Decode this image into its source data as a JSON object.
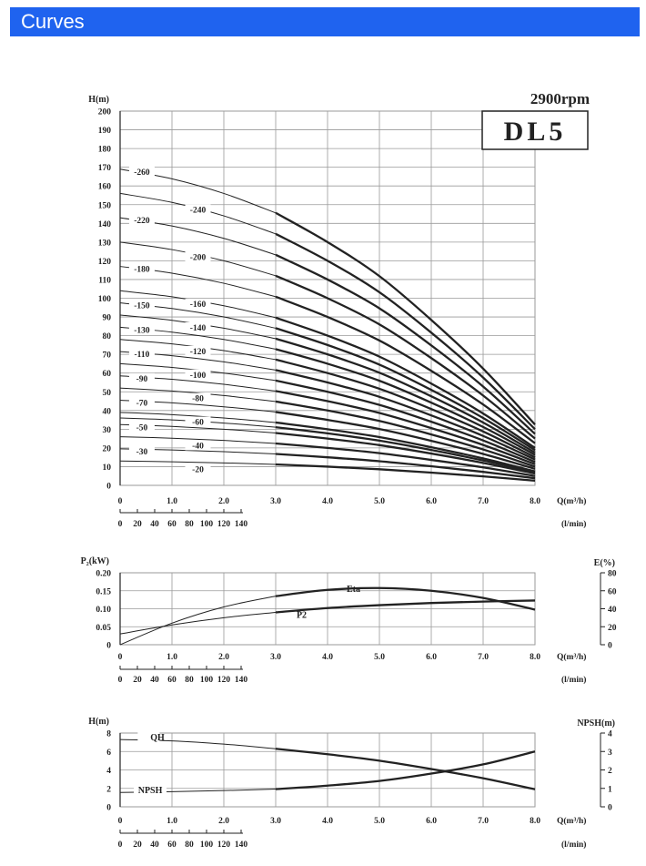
{
  "header": {
    "title": "Curves"
  },
  "colors": {
    "header": "#1f63ef",
    "ink": "#222222",
    "grid": "#9a9a9a"
  },
  "chart_data": [
    {
      "type": "line",
      "title": "DL5",
      "speed": "2900rpm",
      "ylabel": "H(m)",
      "xlabel": "Q(m³/h)",
      "xlabel2": "(l/min)",
      "ylim": [
        0,
        200
      ],
      "xlim": [
        0,
        8
      ],
      "yticks": [
        "0",
        "10",
        "20",
        "30",
        "40",
        "50",
        "60",
        "70",
        "80",
        "90",
        "100",
        "110",
        "120",
        "130",
        "140",
        "150",
        "160",
        "170",
        "180",
        "190",
        "200"
      ],
      "xticks": [
        "0",
        "1.0",
        "2.0",
        "3.0",
        "4.0",
        "5.0",
        "6.0",
        "7.0",
        "8.0"
      ],
      "xticks2": [
        "0",
        "20",
        "40",
        "60",
        "80",
        "100",
        "120",
        "140"
      ],
      "grid": true,
      "series": [
        {
          "name": "-20",
          "labeled": true,
          "values": [
            13,
            12.6,
            12.0,
            11.2,
            10.0,
            8.6,
            6.8,
            4.8,
            2.5
          ]
        },
        {
          "name": "-30",
          "labeled": true,
          "values": [
            19.5,
            18.9,
            18.0,
            16.8,
            15.0,
            12.9,
            10.2,
            7.2,
            3.8
          ]
        },
        {
          "name": "-40",
          "labeled": true,
          "values": [
            26,
            25.2,
            24.0,
            22.4,
            20.0,
            17.2,
            13.6,
            9.6,
            5.0
          ]
        },
        {
          "name": "-50",
          "labeled": true,
          "values": [
            32.5,
            31.5,
            30.0,
            28.0,
            25.0,
            21.5,
            17.0,
            12.0,
            6.3
          ]
        },
        {
          "name": "",
          "labeled": false,
          "values": [
            36,
            35.0,
            33.3,
            31.1,
            27.8,
            23.9,
            18.9,
            13.3,
            7.0
          ]
        },
        {
          "name": "-60",
          "labeled": true,
          "values": [
            39,
            37.8,
            36.0,
            33.6,
            30.0,
            25.8,
            20.4,
            14.4,
            7.5
          ]
        },
        {
          "name": "-70",
          "labeled": true,
          "values": [
            45.5,
            44.1,
            42.0,
            39.2,
            35.0,
            30.1,
            23.8,
            16.8,
            8.8
          ]
        },
        {
          "name": "-80",
          "labeled": true,
          "values": [
            52,
            50.4,
            48.0,
            44.8,
            40.0,
            34.4,
            27.2,
            19.2,
            10.0
          ]
        },
        {
          "name": "-90",
          "labeled": true,
          "values": [
            58.5,
            56.7,
            54.0,
            50.4,
            45.0,
            38.7,
            30.6,
            21.6,
            11.3
          ]
        },
        {
          "name": "-100",
          "labeled": true,
          "values": [
            65,
            63.0,
            60.0,
            56.0,
            50.0,
            43.0,
            34.0,
            24.0,
            12.5
          ]
        },
        {
          "name": "-110",
          "labeled": true,
          "values": [
            71.5,
            69.3,
            66.0,
            61.6,
            55.0,
            47.3,
            37.4,
            26.4,
            13.8
          ]
        },
        {
          "name": "-120",
          "labeled": true,
          "values": [
            78,
            75.6,
            72.0,
            67.2,
            60.0,
            51.6,
            40.8,
            28.8,
            15.0
          ]
        },
        {
          "name": "-130",
          "labeled": true,
          "values": [
            84.5,
            81.9,
            78.0,
            72.8,
            65.0,
            55.9,
            44.2,
            31.2,
            16.3
          ]
        },
        {
          "name": "-140",
          "labeled": true,
          "values": [
            91,
            88.2,
            84.0,
            78.4,
            70.0,
            60.2,
            47.6,
            33.6,
            17.5
          ]
        },
        {
          "name": "-150",
          "labeled": true,
          "values": [
            97.5,
            94.5,
            90.0,
            84.0,
            75.0,
            64.5,
            51.0,
            36.0,
            18.8
          ]
        },
        {
          "name": "-160",
          "labeled": true,
          "values": [
            104,
            100.8,
            96.0,
            89.6,
            80.0,
            68.8,
            54.4,
            38.4,
            20.0
          ]
        },
        {
          "name": "-180",
          "labeled": true,
          "values": [
            117,
            113.4,
            108.0,
            100.8,
            90.0,
            77.4,
            61.2,
            43.2,
            22.5
          ]
        },
        {
          "name": "-200",
          "labeled": true,
          "values": [
            130,
            126.0,
            120.0,
            112.0,
            100.0,
            86.0,
            68.0,
            48.0,
            25.0
          ]
        },
        {
          "name": "-220",
          "labeled": true,
          "values": [
            143,
            138.6,
            132.0,
            123.2,
            110.0,
            94.6,
            74.8,
            52.8,
            27.5
          ]
        },
        {
          "name": "-240",
          "labeled": true,
          "values": [
            156,
            151.2,
            144.0,
            134.4,
            120.0,
            103.2,
            81.6,
            57.6,
            30.0
          ]
        },
        {
          "name": "-260",
          "labeled": true,
          "values": [
            169,
            163.8,
            156.0,
            145.6,
            130.0,
            111.8,
            88.4,
            62.4,
            32.5
          ]
        }
      ]
    },
    {
      "type": "line",
      "ylabel": "P₂(kW)",
      "ylabel_right": "E(%)",
      "xlabel": "Q(m³/h)",
      "xlabel2": "(l/min)",
      "ylim": [
        0,
        0.2
      ],
      "ylim_right": [
        0,
        80
      ],
      "yticks": [
        "0",
        "0.05",
        "0.10",
        "0.15",
        "0.20"
      ],
      "yticks_right": [
        "0",
        "20",
        "40",
        "60",
        "80"
      ],
      "xticks": [
        "0",
        "1.0",
        "2.0",
        "3.0",
        "4.0",
        "5.0",
        "6.0",
        "7.0",
        "8.0"
      ],
      "xticks2": [
        "0",
        "20",
        "40",
        "60",
        "80",
        "100",
        "120",
        "140"
      ],
      "grid": true,
      "series": [
        {
          "name": "Eta",
          "axis": "right",
          "x": [
            0,
            1,
            2,
            3,
            4,
            5,
            6,
            7,
            8
          ],
          "values": [
            0,
            24,
            42,
            54,
            61,
            63,
            60,
            52,
            39
          ]
        },
        {
          "name": "P2",
          "axis": "left",
          "x": [
            0,
            1,
            2,
            3,
            4,
            5,
            6,
            7,
            8
          ],
          "values": [
            0.03,
            0.055,
            0.075,
            0.09,
            0.102,
            0.11,
            0.116,
            0.12,
            0.123
          ]
        }
      ]
    },
    {
      "type": "line",
      "ylabel": "H(m)",
      "ylabel_right": "NPSH(m)",
      "xlabel": "Q(m³/h)",
      "xlabel2": "(l/min)",
      "ylim": [
        0,
        8
      ],
      "ylim_right": [
        0,
        4
      ],
      "yticks": [
        "0",
        "2",
        "4",
        "6",
        "8"
      ],
      "yticks_right": [
        "0",
        "1",
        "2",
        "3",
        "4"
      ],
      "xticks": [
        "0",
        "1.0",
        "2.0",
        "3.0",
        "4.0",
        "5.0",
        "6.0",
        "7.0",
        "8.0"
      ],
      "xticks2": [
        "0",
        "20",
        "40",
        "60",
        "80",
        "100",
        "120",
        "140"
      ],
      "grid": true,
      "series": [
        {
          "name": "QH",
          "axis": "left",
          "x": [
            0,
            1,
            2,
            3,
            4,
            5,
            6,
            7,
            8
          ],
          "values": [
            7.3,
            7.15,
            6.8,
            6.3,
            5.7,
            5.0,
            4.1,
            3.1,
            1.9
          ]
        },
        {
          "name": "NPSH",
          "axis": "right",
          "x": [
            0,
            1,
            2,
            3,
            4,
            5,
            6,
            7,
            8
          ],
          "values": [
            0.78,
            0.82,
            0.88,
            0.96,
            1.15,
            1.4,
            1.8,
            2.3,
            3.0
          ]
        }
      ]
    }
  ]
}
